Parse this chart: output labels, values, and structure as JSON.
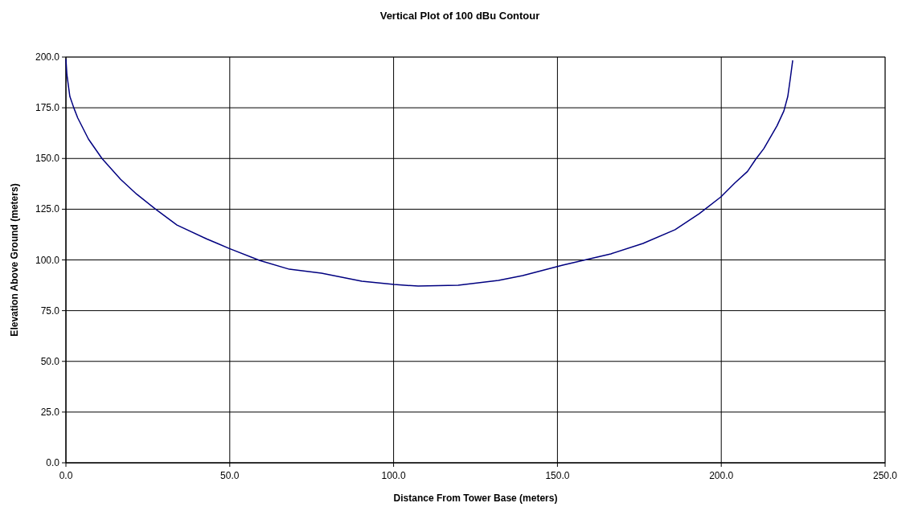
{
  "chart_data": {
    "type": "line",
    "title": "Vertical Plot of 100 dBu Contour",
    "xlabel": "Distance From Tower Base (meters)",
    "ylabel": "Elevation Above Ground (meters)",
    "xlim": [
      0,
      250
    ],
    "xticks": [
      {
        "value": 0,
        "label": "0.0"
      },
      {
        "value": 50,
        "label": "50.0"
      },
      {
        "value": 100,
        "label": "100.0"
      },
      {
        "value": 150,
        "label": "150.0"
      },
      {
        "value": 200,
        "label": "200.0"
      },
      {
        "value": 250,
        "label": "250.0"
      }
    ],
    "ylim": [
      0,
      200
    ],
    "yticks": [
      {
        "value": 0,
        "label": "0.0"
      },
      {
        "value": 25,
        "label": "25.0"
      },
      {
        "value": 50,
        "label": "50.0"
      },
      {
        "value": 75,
        "label": "75.0"
      },
      {
        "value": 100,
        "label": "100.0"
      },
      {
        "value": 125,
        "label": "125.0"
      },
      {
        "value": 150,
        "label": "150.0"
      },
      {
        "value": 175,
        "label": "175.0"
      },
      {
        "value": 200,
        "label": "200.0"
      }
    ],
    "grid": true,
    "series": [
      {
        "color": "#000080",
        "x": [
          0,
          0.3,
          1.2,
          2.4,
          3.6,
          6.9,
          11,
          16.7,
          21.6,
          27.3,
          33.9,
          42.9,
          46.1,
          49.9,
          59.2,
          68.2,
          78,
          90.3,
          100.1,
          107.5,
          119.7,
          132,
          139.4,
          151.6,
          166.3,
          176.1,
          185.9,
          193.3,
          199.9,
          204,
          208,
          210.5,
          213,
          217,
          219.1,
          220.3,
          221.1,
          221.8
        ],
        "values": [
          199,
          191.3,
          180.6,
          175,
          170,
          159.5,
          150,
          139.7,
          132.4,
          125.1,
          117.2,
          110.4,
          108.2,
          105.6,
          99.7,
          95.4,
          93.5,
          89.5,
          87.9,
          87.1,
          87.5,
          89.9,
          92.3,
          97.4,
          103,
          108.1,
          114.9,
          122.8,
          131.1,
          137.7,
          143.6,
          149.6,
          154.9,
          166.1,
          173.4,
          180.6,
          189.8,
          198.4
        ]
      }
    ]
  }
}
